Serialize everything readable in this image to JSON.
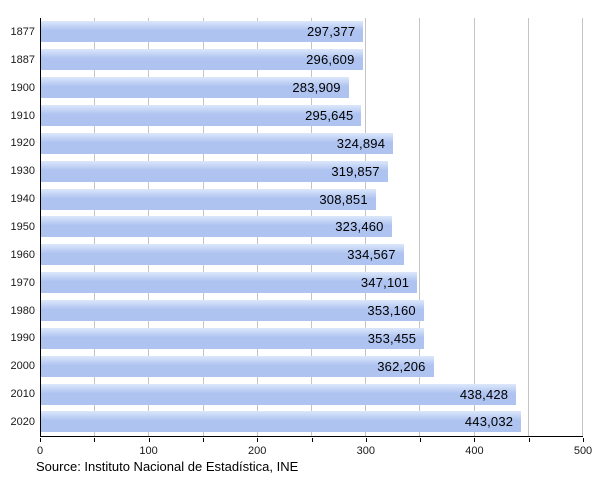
{
  "chart_data": {
    "type": "bar",
    "orientation": "horizontal",
    "title": "",
    "xlabel": "",
    "ylabel": "",
    "categories": [
      "1877",
      "1887",
      "1900",
      "1910",
      "1920",
      "1930",
      "1940",
      "1950",
      "1960",
      "1970",
      "1980",
      "1990",
      "2000",
      "2010",
      "2020"
    ],
    "values": [
      297377,
      296609,
      283909,
      295645,
      324894,
      319857,
      308851,
      323460,
      334567,
      347101,
      353160,
      353455,
      362206,
      438428,
      443032
    ],
    "value_labels": [
      "297,377",
      "296,609",
      "283,909",
      "295,645",
      "324,894",
      "319,857",
      "308,851",
      "323,460",
      "334,567",
      "347,101",
      "353,160",
      "353,455",
      "362,206",
      "438,428",
      "443,032"
    ],
    "xlim": [
      0,
      500
    ],
    "axis_value_divisor": 1000,
    "x_major_ticks": [
      0,
      100,
      200,
      300,
      400,
      500
    ],
    "x_minor_step": 50,
    "grid": true,
    "legend": "none",
    "bar_color": "#aec3f0",
    "bar_color_light": "#dce7fb",
    "gridline_color": "#c4c4c4",
    "axis_color": "#000000"
  },
  "footer": {
    "source": "Source: Instituto Nacional de Estadística, INE"
  }
}
